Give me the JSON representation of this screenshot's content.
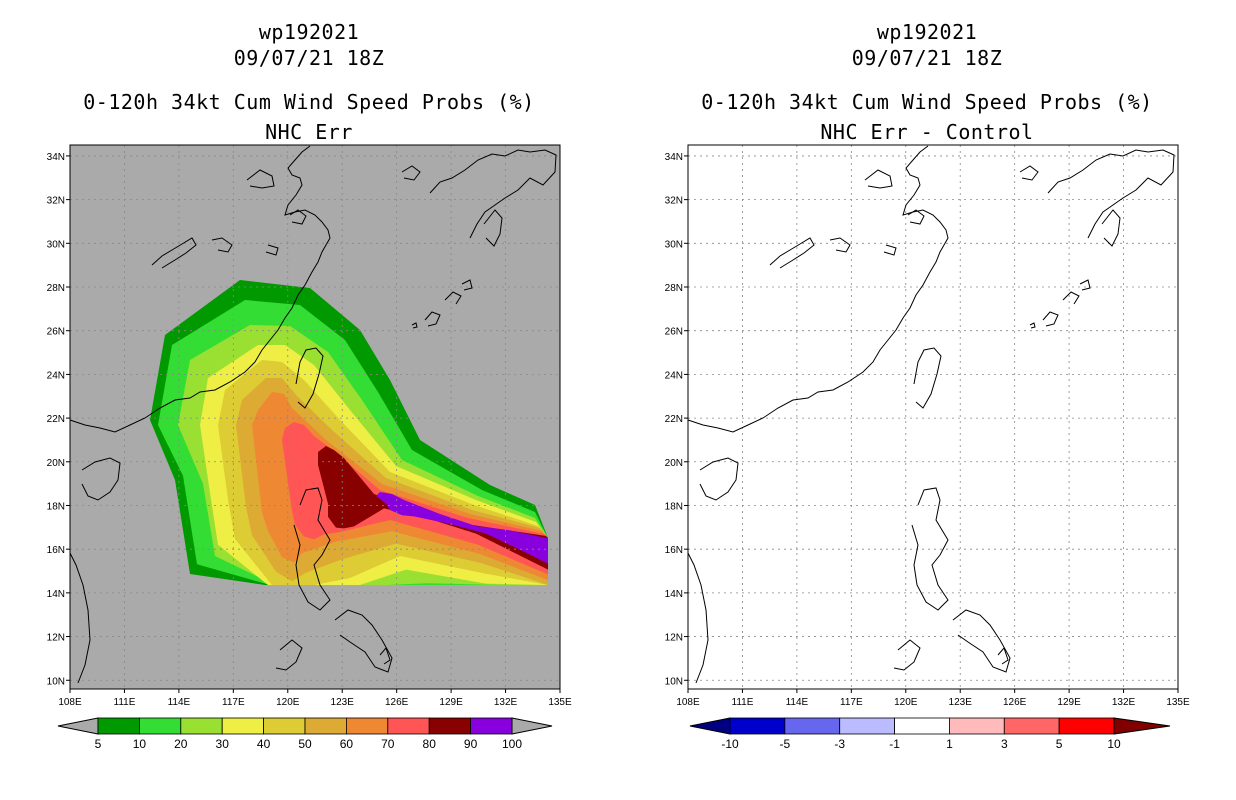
{
  "left_panel": {
    "storm_id": "wp192021",
    "datetime": "09/07/21 18Z",
    "product": "0-120h 34kt Cum Wind Speed Probs (%)",
    "subtitle": "NHC Err",
    "background_color": "#aaaaaa",
    "x_ticks": [
      "108E",
      "111E",
      "114E",
      "117E",
      "120E",
      "123E",
      "126E",
      "129E",
      "132E",
      "135E"
    ],
    "y_ticks": [
      "34N",
      "32N",
      "30N",
      "28N",
      "26N",
      "24N",
      "22N",
      "20N",
      "18N",
      "16N",
      "14N",
      "12N",
      "10N"
    ],
    "colorbar": {
      "labels": [
        "5",
        "10",
        "20",
        "30",
        "40",
        "50",
        "60",
        "70",
        "80",
        "90",
        "100"
      ],
      "colors": [
        "#009900",
        "#33dd33",
        "#99e033",
        "#eeee44",
        "#ddcc33",
        "#ddaa33",
        "#ee8833",
        "#ff5555",
        "#880000",
        "#8800dd"
      ],
      "extend_color": "#aaaaaa"
    }
  },
  "right_panel": {
    "storm_id": "wp192021",
    "datetime": "09/07/21 18Z",
    "product": "0-120h 34kt Cum Wind Speed Probs (%)",
    "subtitle": "NHC Err - Control",
    "background_color": "#ffffff",
    "x_ticks": [
      "108E",
      "111E",
      "114E",
      "117E",
      "120E",
      "123E",
      "126E",
      "129E",
      "132E",
      "135E"
    ],
    "y_ticks": [
      "34N",
      "32N",
      "30N",
      "28N",
      "26N",
      "24N",
      "22N",
      "20N",
      "18N",
      "16N",
      "14N",
      "12N",
      "10N"
    ],
    "colorbar": {
      "labels": [
        "-10",
        "-5",
        "-3",
        "-1",
        "1",
        "3",
        "5",
        "10"
      ],
      "colors": [
        "#0000cc",
        "#6666ee",
        "#bbbbff",
        "#ffffff",
        "#ffbbbb",
        "#ff6666",
        "#ff0000"
      ],
      "low_extend_color": "#000080",
      "high_extend_color": "#800000"
    }
  },
  "probability_bands": [
    {
      "min_pct": 5,
      "color": "#009900"
    },
    {
      "min_pct": 10,
      "color": "#33dd33"
    },
    {
      "min_pct": 20,
      "color": "#99e033"
    },
    {
      "min_pct": 30,
      "color": "#eeee44"
    },
    {
      "min_pct": 40,
      "color": "#ddcc33"
    },
    {
      "min_pct": 50,
      "color": "#ddaa33"
    },
    {
      "min_pct": 60,
      "color": "#ee8833"
    },
    {
      "min_pct": 70,
      "color": "#ff5555"
    },
    {
      "min_pct": 80,
      "color": "#880000"
    },
    {
      "min_pct": 90,
      "color": "#8800dd"
    }
  ]
}
